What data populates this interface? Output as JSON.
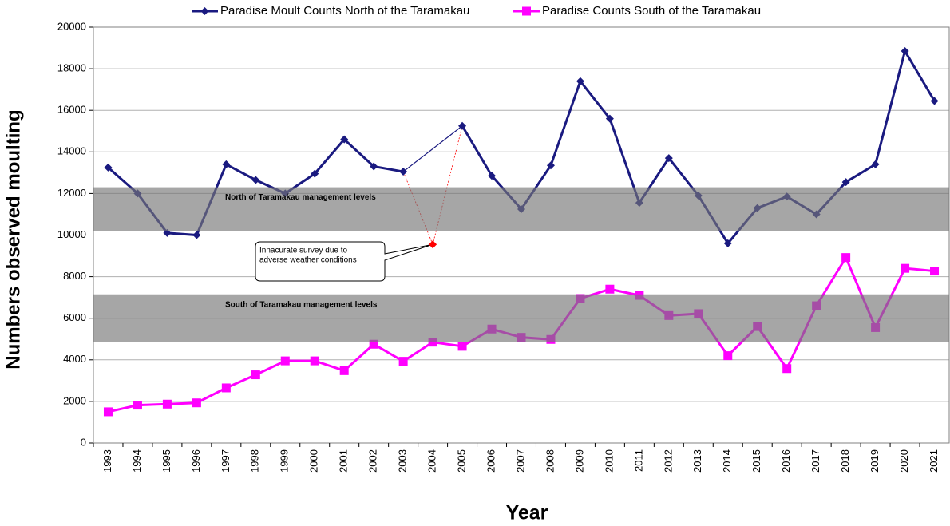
{
  "chart_data": {
    "type": "line",
    "categories": [
      "1993",
      "1994",
      "1995",
      "1996",
      "1997",
      "1998",
      "1999",
      "2000",
      "2001",
      "2002",
      "2003",
      "2004",
      "2005",
      "2006",
      "2007",
      "2008",
      "2009",
      "2010",
      "2011",
      "2012",
      "2013",
      "2014",
      "2015",
      "2016",
      "2017",
      "2018",
      "2019",
      "2020",
      "2021"
    ],
    "series": [
      {
        "name": "Paradise Moult Counts North of the Taramakau",
        "color": "#1a1a80",
        "marker": "diamond",
        "span_gaps": true,
        "values": [
          13250,
          12000,
          10100,
          10000,
          13400,
          12650,
          12000,
          12950,
          14600,
          13300,
          13050,
          null,
          15250,
          12850,
          11250,
          13350,
          17400,
          15600,
          11550,
          13700,
          11900,
          9600,
          11300,
          11850,
          11000,
          12550,
          13400,
          18850,
          16450
        ]
      },
      {
        "name": "Paradise Counts South of the Taramakau",
        "color": "#ff00ff",
        "marker": "square",
        "values": [
          1500,
          1820,
          1870,
          1930,
          2650,
          3280,
          3950,
          3950,
          3480,
          4750,
          3930,
          4850,
          4650,
          5480,
          5080,
          4980,
          6950,
          7400,
          7100,
          6130,
          6220,
          4200,
          5600,
          3580,
          6600,
          8920,
          5550,
          8400,
          8270
        ]
      }
    ],
    "ylim": [
      0,
      20000
    ],
    "yticks": [
      0,
      2000,
      4000,
      6000,
      8000,
      10000,
      12000,
      14000,
      16000,
      18000,
      20000
    ],
    "grid": true,
    "legend": "top",
    "xlabel": "Year",
    "ylabel": "Numbers observed moulting",
    "bands": [
      {
        "label": "North of Taramakau management levels",
        "range": [
          10200,
          12300
        ]
      },
      {
        "label": "South of Taramakau management levels",
        "range": [
          4850,
          7150
        ]
      }
    ],
    "annotation": {
      "category": "2004",
      "value": 9550,
      "color": "#ff0000",
      "text": [
        "Innacurate survey due to",
        "adverse weather conditions"
      ]
    }
  }
}
